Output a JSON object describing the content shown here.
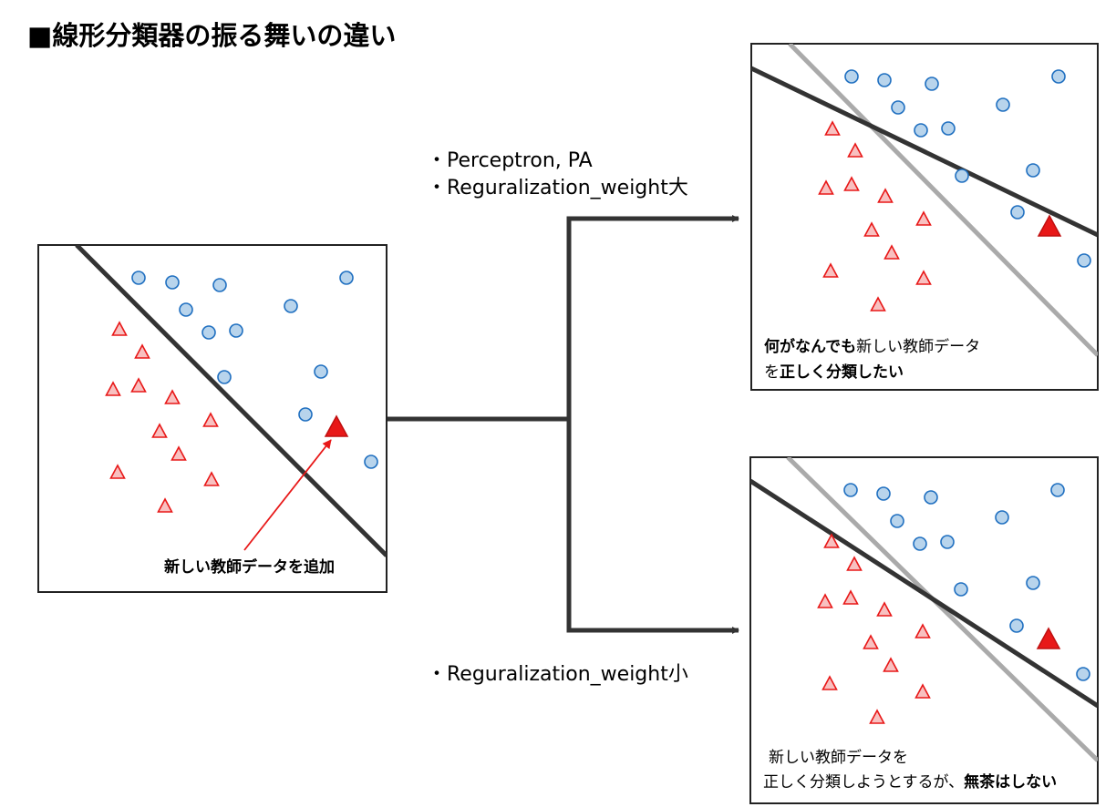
{
  "title": "■線形分類器の振る舞いの違い",
  "options_top": [
    "・Perceptron, PA",
    "・Reguralization_weight大"
  ],
  "option_bottom": "・Reguralization_weight小",
  "left_panel": {
    "annotation": "新しい教師データを追加"
  },
  "top_right_panel": {
    "caption_line1_bold": "何がなんでも",
    "caption_line1_rest": "新しい教師データ",
    "caption_line2_pre": "を",
    "caption_line2_bold": "正しく分類したい"
  },
  "bottom_right_panel": {
    "caption_line1": "新しい教師データを",
    "caption_line2_pre": "正しく分類しようとするが、",
    "caption_line2_bold": "無茶はしない"
  },
  "colors": {
    "circle_fill": "#b8d4ec",
    "circle_stroke": "#1f6fc0",
    "triangle_fill": "#f8c0c0",
    "triangle_stroke": "#e81818",
    "new_point": "#e81818",
    "boundary": "#333333",
    "old_boundary": "#aaaaaa"
  }
}
